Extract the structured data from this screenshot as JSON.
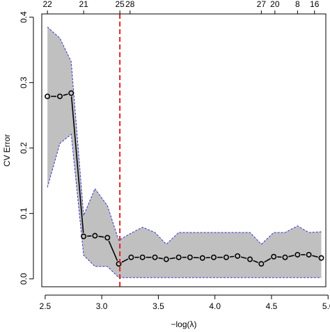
{
  "chart_data": {
    "type": "line",
    "xlabel": "−log(λ)",
    "ylabel": "CV Error",
    "xlim": [
      2.47,
      4.98
    ],
    "ylim": [
      -0.012,
      0.405
    ],
    "x_ticks": [
      2.5,
      3.0,
      3.5,
      4.0,
      4.5,
      5.0
    ],
    "x_tick_labels": [
      "2.5",
      "3.0",
      "3.5",
      "4.0",
      "4.5",
      "5.0"
    ],
    "y_ticks": [
      0.0,
      0.1,
      0.2,
      0.3,
      0.4
    ],
    "y_tick_labels": [
      "0.0",
      "0.1",
      "0.2",
      "0.3",
      "0.4"
    ],
    "top_ticks": [
      {
        "x": 2.52,
        "label": "22"
      },
      {
        "x": 2.84,
        "label": "21"
      },
      {
        "x": 3.16,
        "label": "25"
      },
      {
        "x": 3.25,
        "label": "28"
      },
      {
        "x": 4.41,
        "label": "27"
      },
      {
        "x": 4.53,
        "label": "20"
      },
      {
        "x": 4.73,
        "label": "8"
      },
      {
        "x": 4.88,
        "label": "16"
      }
    ],
    "cv_error": {
      "x": [
        2.52,
        2.63,
        2.73,
        2.84,
        2.94,
        3.05,
        3.15,
        3.26,
        3.36,
        3.47,
        3.57,
        3.68,
        3.78,
        3.89,
        3.99,
        4.1,
        4.2,
        4.31,
        4.41,
        4.52,
        4.62,
        4.73,
        4.83,
        4.94
      ],
      "y": [
        0.279,
        0.279,
        0.284,
        0.065,
        0.066,
        0.063,
        0.023,
        0.033,
        0.033,
        0.033,
        0.03,
        0.033,
        0.033,
        0.032,
        0.033,
        0.033,
        0.035,
        0.03,
        0.023,
        0.034,
        0.033,
        0.037,
        0.037,
        0.032
      ]
    },
    "upper": [
      0.385,
      0.368,
      0.332,
      0.097,
      0.138,
      0.112,
      0.059,
      0.07,
      0.079,
      0.071,
      0.053,
      0.071,
      0.071,
      0.071,
      0.071,
      0.071,
      0.071,
      0.071,
      0.053,
      0.071,
      0.071,
      0.081,
      0.071,
      0.072
    ],
    "lower": [
      0.14,
      0.207,
      0.221,
      0.036,
      0.019,
      0.019,
      0.002,
      0.002,
      0.002,
      0.002,
      0.002,
      0.002,
      0.002,
      0.002,
      0.002,
      0.002,
      0.002,
      0.002,
      0.002,
      0.002,
      0.002,
      0.002,
      0.002,
      0.002
    ],
    "reference_line": {
      "x": 3.16,
      "color": "#dd2222",
      "style": "dashed"
    },
    "colors": {
      "band_fill": "#c0c0c0",
      "band_edge": "#3333cc",
      "line": "#000000"
    },
    "grid": false
  }
}
